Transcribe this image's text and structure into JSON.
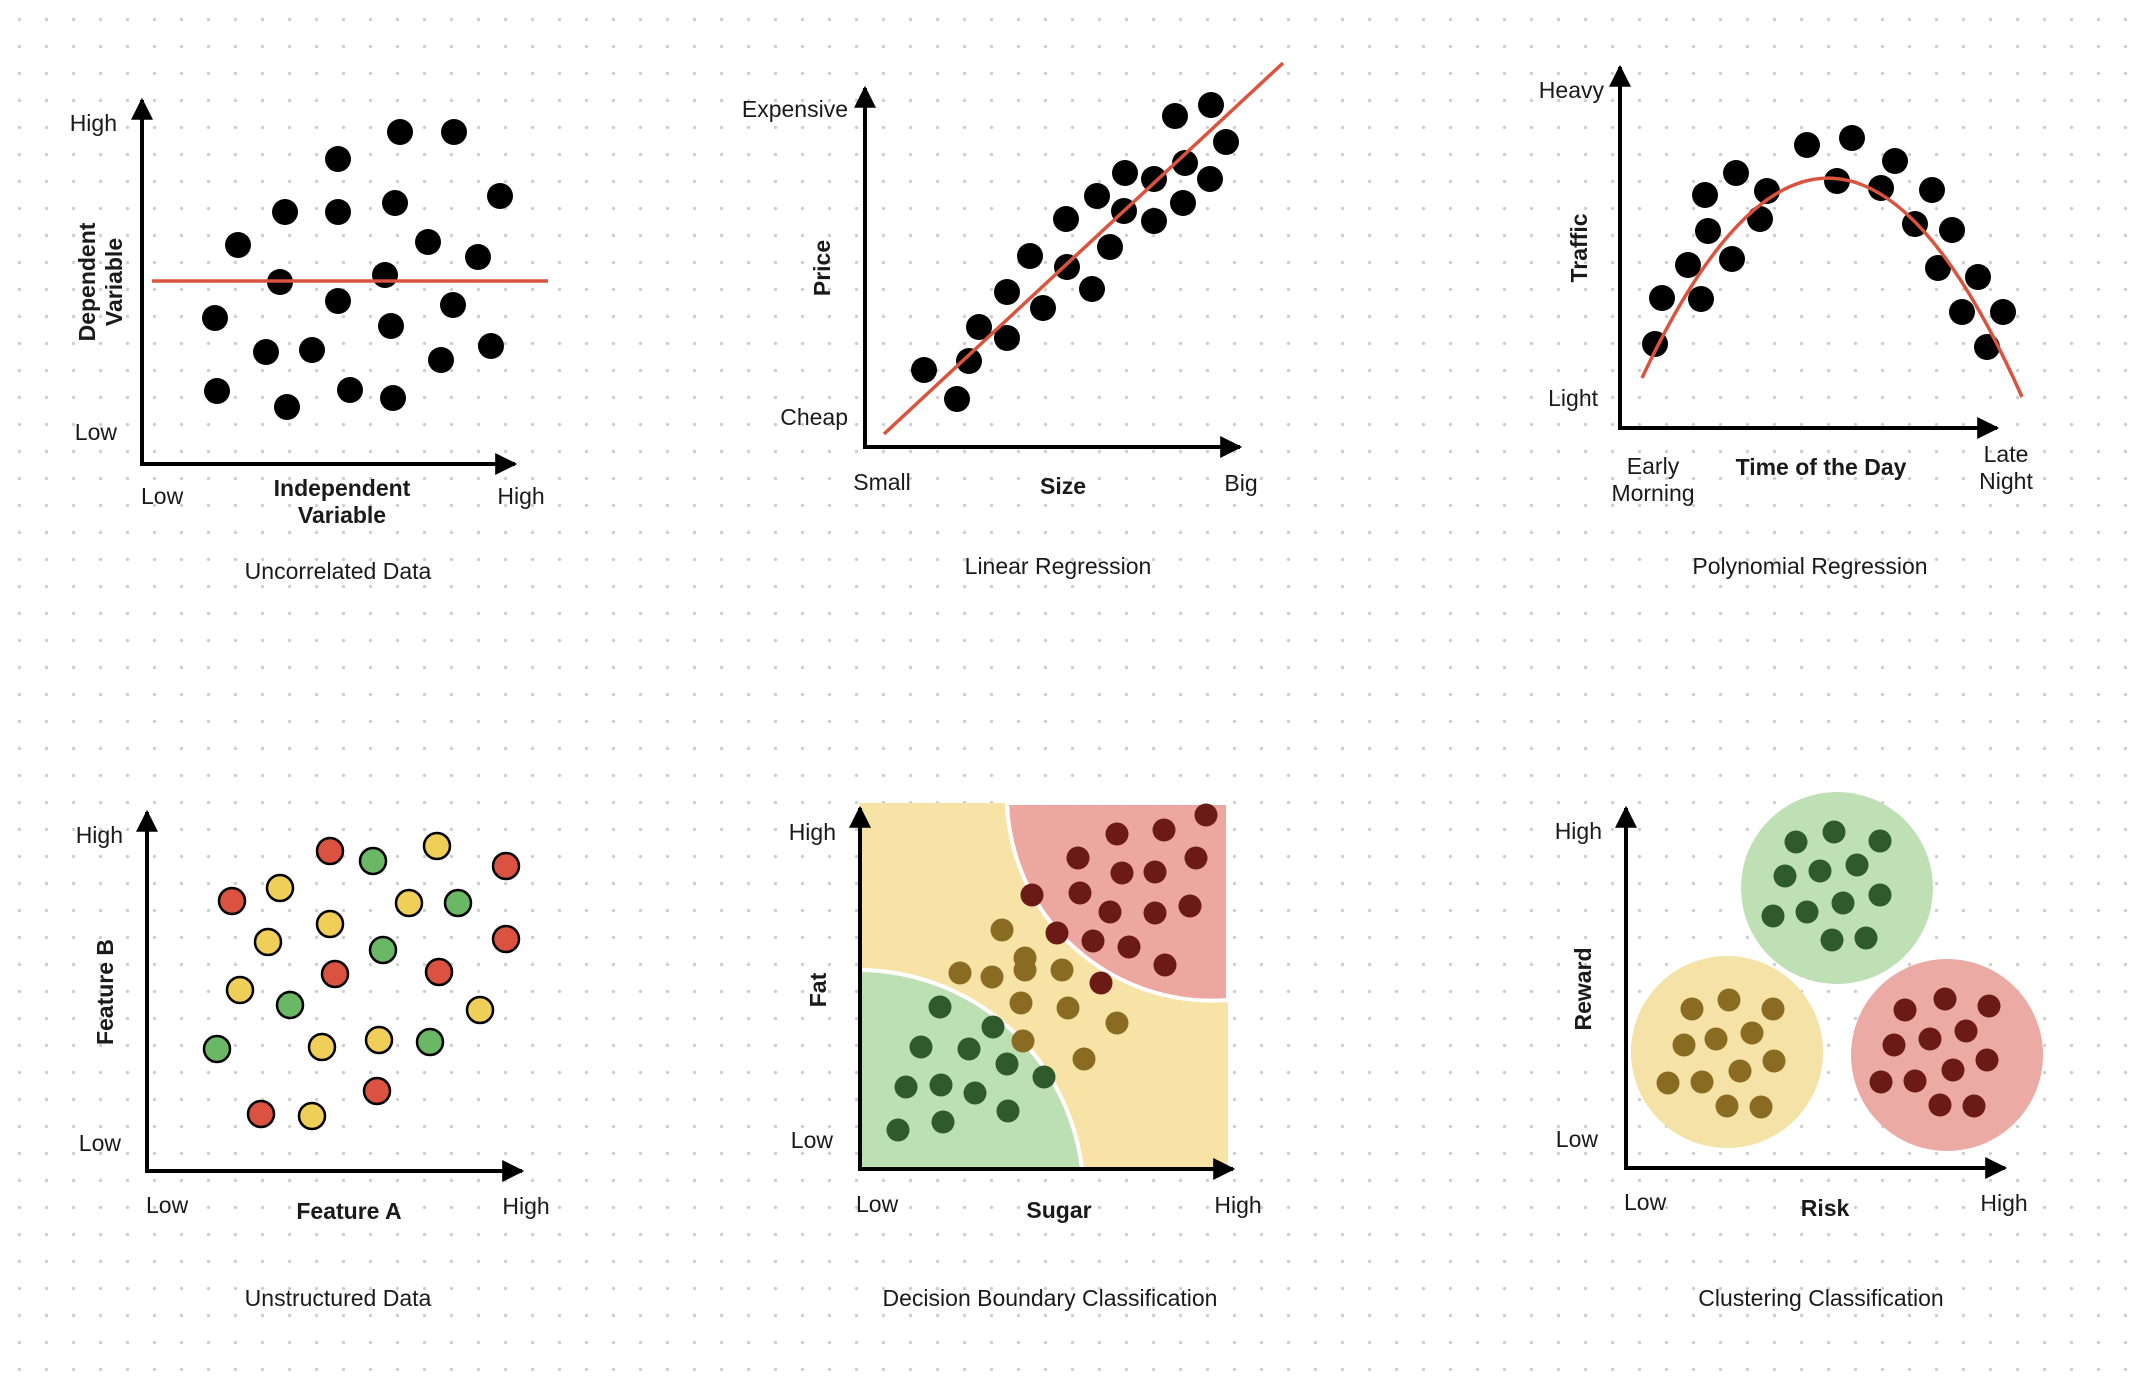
{
  "colors": {
    "axis": "#000000",
    "point": "#000000",
    "fit_line": "#d9533f",
    "red": "#dc5241",
    "green": "#6ab866",
    "yellow": "#f0cf58",
    "zone_yellow": "#f7e3a6",
    "zone_red": "#eba7a0",
    "zone_green": "#bddfb4",
    "dark_red_point": "#6b1a16",
    "dark_green_point": "#2f5a2c",
    "olive_point": "#8a6b22",
    "cluster_green": "#bfe0b5",
    "cluster_yellow": "#f5e2a6",
    "cluster_red": "#ebaaa3"
  },
  "panels": {
    "uncorrelated": {
      "caption": "Uncorrelated Data",
      "y_high": "High",
      "y_low": "Low",
      "y_title_1": "Dependent",
      "y_title_2": "Variable",
      "x_low": "Low",
      "x_high": "High",
      "x_title_1": "Independent",
      "x_title_2": "Variable"
    },
    "linear": {
      "caption": "Linear Regression",
      "y_high": "Expensive",
      "y_low": "Cheap",
      "y_title": "Price",
      "x_low": "Small",
      "x_high": "Big",
      "x_title": "Size"
    },
    "polynomial": {
      "caption": "Polynomial Regression",
      "y_high": "Heavy",
      "y_low": "Light",
      "y_title": "Traffic",
      "x_low_1": "Early",
      "x_low_2": "Morning",
      "x_high_1": "Late",
      "x_high_2": "Night",
      "x_title": "Time of the Day"
    },
    "unstructured": {
      "caption": "Unstructured Data",
      "y_high": "High",
      "y_low": "Low",
      "y_title": "Feature B",
      "x_low": "Low",
      "x_high": "High",
      "x_title": "Feature A"
    },
    "decision": {
      "caption": "Decision Boundary Classification",
      "y_high": "High",
      "y_low": "Low",
      "y_title": "Fat",
      "x_low": "Low",
      "x_high": "High",
      "x_title": "Sugar"
    },
    "clustering": {
      "caption": "Clustering Classification",
      "y_high": "High",
      "y_low": "Low",
      "y_title": "Reward",
      "x_low": "Low",
      "x_high": "High",
      "x_title": "Risk"
    }
  }
}
